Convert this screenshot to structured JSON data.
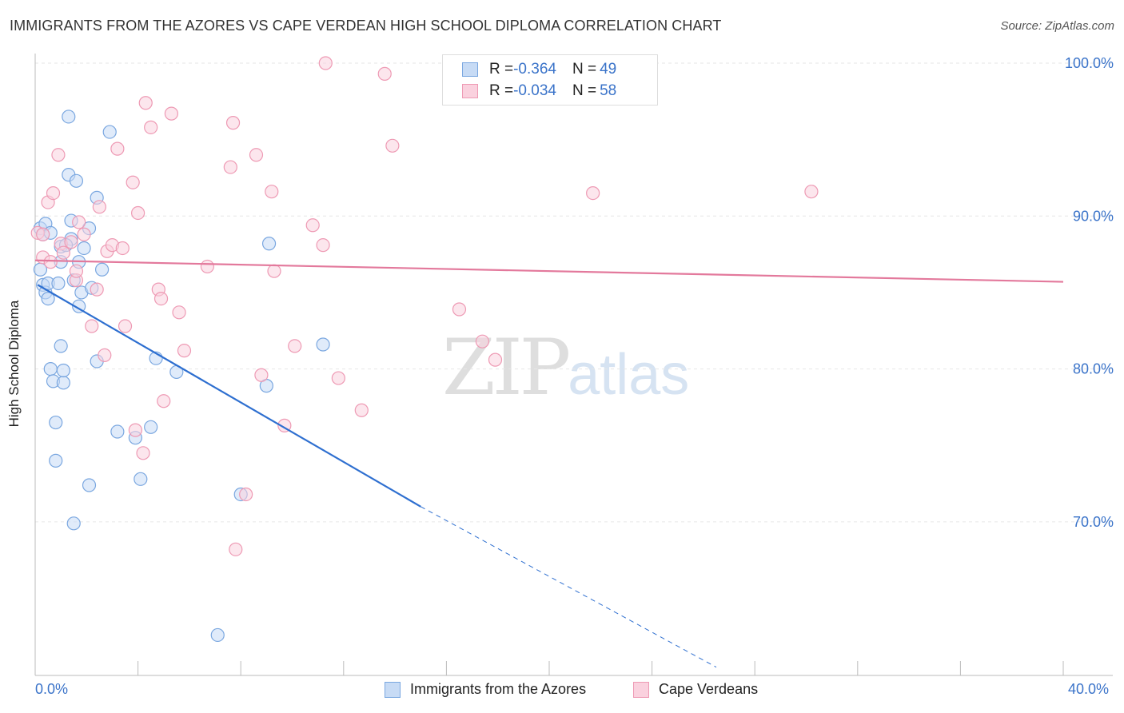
{
  "title": "IMMIGRANTS FROM THE AZORES VS CAPE VERDEAN HIGH SCHOOL DIPLOMA CORRELATION CHART",
  "source": "Source: ZipAtlas.com",
  "watermark": {
    "zip": "ZIP",
    "atlas": "atlas"
  },
  "legend": {
    "rows": [
      {
        "r_label": "R = ",
        "r_value": "-0.364",
        "n_label": "N = ",
        "n_value": "49",
        "color": "#a9c8f0"
      },
      {
        "r_label": "R = ",
        "r_value": "-0.034",
        "n_label": "N = ",
        "n_value": "58",
        "color": "#f7b8cb"
      }
    ]
  },
  "chart_data": {
    "type": "scatter",
    "title": "IMMIGRANTS FROM THE AZORES VS CAPE VERDEAN HIGH SCHOOL DIPLOMA CORRELATION CHART",
    "xlabel": "",
    "ylabel": "High School Diploma",
    "xlim": [
      0,
      40
    ],
    "ylim": [
      62,
      101
    ],
    "x_ticks": [
      "0.0%",
      "40.0%"
    ],
    "y_ticks": [
      {
        "value": 100,
        "label": "100.0%"
      },
      {
        "value": 90,
        "label": "90.0%"
      },
      {
        "value": 80,
        "label": "80.0%"
      },
      {
        "value": 70,
        "label": "70.0%"
      }
    ],
    "grid": true,
    "series": [
      {
        "name": "Immigrants from the Azores",
        "color": "#7aa7e0",
        "fill": "#c7dbf5",
        "trend_color": "#2e6fd0",
        "trend": {
          "x0": 0.1,
          "y0": 85.5,
          "x1": 15,
          "y1": 71.0,
          "dash_to_x": 26.5,
          "dash_to_y": 60.5
        },
        "points": [
          [
            0.2,
            89.2
          ],
          [
            0.3,
            88.8
          ],
          [
            0.2,
            86.5
          ],
          [
            0.3,
            85.5
          ],
          [
            0.4,
            85.0
          ],
          [
            0.5,
            84.6
          ],
          [
            0.5,
            85.6
          ],
          [
            0.6,
            80.0
          ],
          [
            0.7,
            79.2
          ],
          [
            0.8,
            76.5
          ],
          [
            0.8,
            74.0
          ],
          [
            0.9,
            85.6
          ],
          [
            1.0,
            87.0
          ],
          [
            1.0,
            88.0
          ],
          [
            1.0,
            81.5
          ],
          [
            1.1,
            79.1
          ],
          [
            1.1,
            79.9
          ],
          [
            1.3,
            92.7
          ],
          [
            1.3,
            96.5
          ],
          [
            1.4,
            89.7
          ],
          [
            1.4,
            88.5
          ],
          [
            1.5,
            69.9
          ],
          [
            1.6,
            92.3
          ],
          [
            1.7,
            84.1
          ],
          [
            1.7,
            87.0
          ],
          [
            1.8,
            85.0
          ],
          [
            1.9,
            87.9
          ],
          [
            2.1,
            89.2
          ],
          [
            2.1,
            72.4
          ],
          [
            2.2,
            85.3
          ],
          [
            2.4,
            80.5
          ],
          [
            2.4,
            91.2
          ],
          [
            2.6,
            86.5
          ],
          [
            2.9,
            95.5
          ],
          [
            3.2,
            75.9
          ],
          [
            3.9,
            75.5
          ],
          [
            4.1,
            72.8
          ],
          [
            4.5,
            76.2
          ],
          [
            4.7,
            80.7
          ],
          [
            5.5,
            79.8
          ],
          [
            7.1,
            62.6
          ],
          [
            8.0,
            71.8
          ],
          [
            9.0,
            78.9
          ],
          [
            9.1,
            88.2
          ],
          [
            11.2,
            81.6
          ],
          [
            0.4,
            89.5
          ],
          [
            0.6,
            88.9
          ],
          [
            1.2,
            88.1
          ],
          [
            1.5,
            85.8
          ]
        ]
      },
      {
        "name": "Cape Verdeans",
        "color": "#ee9ab4",
        "fill": "#fad1de",
        "trend_color": "#e3799c",
        "trend": {
          "x0": 0.0,
          "y0": 87.1,
          "x1": 40.0,
          "y1": 85.7
        },
        "points": [
          [
            0.1,
            88.9
          ],
          [
            0.3,
            88.8
          ],
          [
            0.3,
            87.3
          ],
          [
            0.5,
            90.9
          ],
          [
            0.7,
            91.5
          ],
          [
            0.9,
            94.0
          ],
          [
            1.0,
            88.2
          ],
          [
            1.1,
            87.6
          ],
          [
            1.6,
            85.8
          ],
          [
            1.6,
            86.4
          ],
          [
            1.7,
            89.6
          ],
          [
            1.9,
            88.8
          ],
          [
            2.2,
            82.8
          ],
          [
            2.4,
            85.2
          ],
          [
            2.5,
            90.6
          ],
          [
            2.7,
            80.9
          ],
          [
            2.8,
            87.7
          ],
          [
            3.0,
            88.1
          ],
          [
            3.2,
            94.4
          ],
          [
            3.5,
            82.8
          ],
          [
            3.8,
            92.2
          ],
          [
            3.9,
            76.0
          ],
          [
            4.0,
            90.2
          ],
          [
            4.2,
            74.5
          ],
          [
            4.3,
            97.4
          ],
          [
            4.5,
            95.8
          ],
          [
            4.8,
            85.2
          ],
          [
            4.9,
            84.6
          ],
          [
            5.0,
            77.9
          ],
          [
            5.3,
            96.7
          ],
          [
            5.6,
            83.7
          ],
          [
            5.8,
            81.2
          ],
          [
            6.7,
            86.7
          ],
          [
            7.6,
            93.2
          ],
          [
            7.7,
            96.1
          ],
          [
            7.8,
            68.2
          ],
          [
            8.2,
            71.8
          ],
          [
            8.6,
            94.0
          ],
          [
            8.8,
            79.6
          ],
          [
            9.2,
            91.6
          ],
          [
            9.3,
            86.4
          ],
          [
            9.7,
            76.3
          ],
          [
            10.1,
            81.5
          ],
          [
            10.8,
            89.4
          ],
          [
            11.2,
            88.1
          ],
          [
            11.3,
            100.0
          ],
          [
            11.8,
            79.4
          ],
          [
            12.7,
            77.3
          ],
          [
            13.6,
            99.3
          ],
          [
            13.9,
            94.6
          ],
          [
            16.5,
            83.9
          ],
          [
            17.4,
            81.8
          ],
          [
            17.9,
            80.6
          ],
          [
            21.7,
            91.5
          ],
          [
            30.2,
            91.6
          ],
          [
            0.6,
            87.0
          ],
          [
            1.4,
            88.3
          ],
          [
            3.4,
            87.9
          ]
        ]
      }
    ]
  },
  "bottom_legend": {
    "items": [
      {
        "label": "Immigrants from the Azores"
      },
      {
        "label": "Cape Verdeans"
      }
    ]
  },
  "x_axis": {
    "min_label": "0.0%",
    "max_label": "40.0%"
  }
}
